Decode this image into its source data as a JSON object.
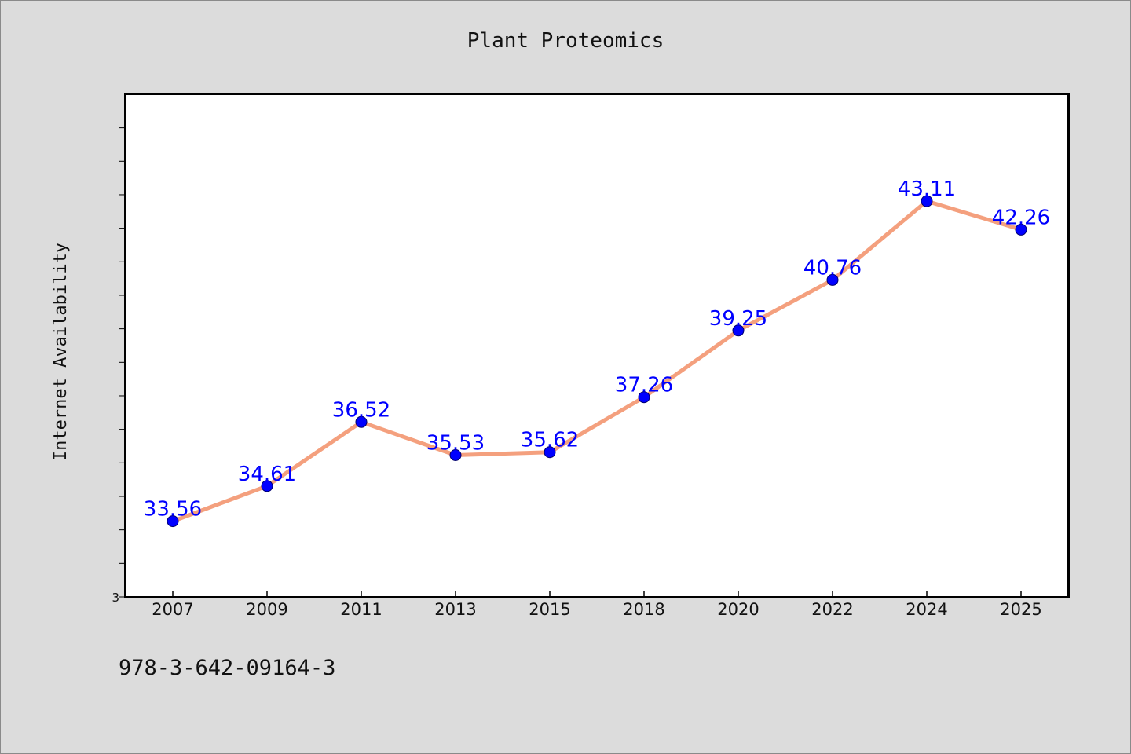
{
  "chart_data": {
    "type": "line",
    "title": "Plant Proteomics",
    "xlabel": "",
    "ylabel": "Internet Availability",
    "categories": [
      "2007",
      "2009",
      "2011",
      "2013",
      "2015",
      "2018",
      "2020",
      "2022",
      "2024",
      "2025"
    ],
    "series": [
      {
        "values": [
          33.56,
          34.61,
          36.52,
          35.53,
          35.62,
          37.26,
          39.25,
          40.76,
          43.11,
          42.26
        ]
      }
    ],
    "data_labels": [
      "33.56",
      "34.61",
      "36.52",
      "35.53",
      "35.62",
      "37.26",
      "39.25",
      "40.76",
      "43.11",
      "42.26"
    ],
    "ylim": [
      31.3,
      46.3
    ],
    "y_tick_label": "3",
    "grid": false,
    "legend": "none",
    "colors": {
      "line": "#f4a07e",
      "marker": "#0000ff",
      "label": "#0000ff",
      "background": "#dcdcdc",
      "plot_background": "#ffffff"
    }
  },
  "footer": {
    "isbn": "978-3-642-09164-3"
  }
}
